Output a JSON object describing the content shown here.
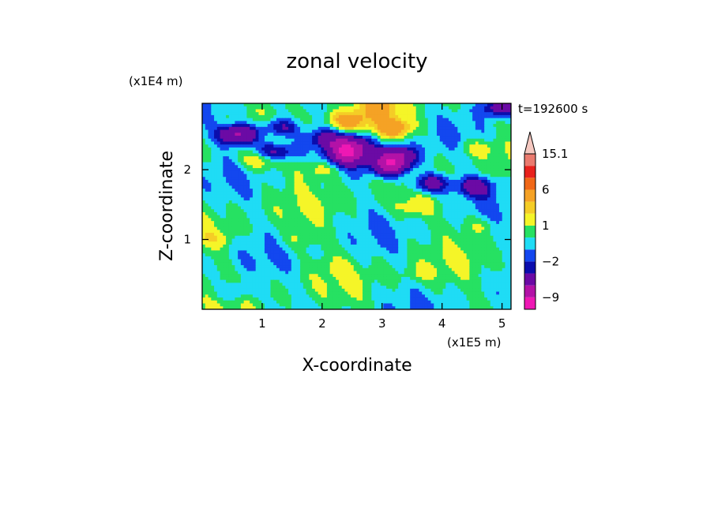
{
  "chart_data": {
    "type": "heatmap",
    "title": "zonal velocity",
    "xlabel": "X-coordinate",
    "ylabel": "Z-coordinate",
    "x_scale_label": "(x1E5 m)",
    "y_scale_label": "(x1E4 m)",
    "time_label": "t=192600 s",
    "xlim": [
      0,
      5.15
    ],
    "ylim": [
      0,
      2.95
    ],
    "x_ticks": [
      "1",
      "2",
      "3",
      "4",
      "5"
    ],
    "y_ticks": [
      "1",
      "2"
    ],
    "colorbar": {
      "labels": [
        "15.1",
        "6",
        "1",
        "-2",
        "-9"
      ],
      "levels": [
        -12,
        -9,
        -6,
        -3,
        -2,
        -1,
        0,
        1,
        2,
        3,
        6,
        9,
        12,
        15.1
      ],
      "colors": [
        "#ee18b4",
        "#b312a7",
        "#6b0aa5",
        "#0b0dad",
        "#1347ef",
        "#1fdcf5",
        "#26e162",
        "#f5f528",
        "#f5cd26",
        "#f5a225",
        "#f06717",
        "#e8211c",
        "#ea7a6e",
        "#f5c8c0"
      ],
      "extend": "max"
    },
    "features": [
      {
        "x": 0.6,
        "z": 2.5,
        "value": -7
      },
      {
        "x": 1.2,
        "z": 2.25,
        "value": -5
      },
      {
        "x": 1.3,
        "z": 2.6,
        "value": -4
      },
      {
        "x": 2.0,
        "z": 2.45,
        "value": -3
      },
      {
        "x": 2.45,
        "z": 2.35,
        "value": -6
      },
      {
        "x": 3.15,
        "z": 2.05,
        "value": -7
      },
      {
        "x": 3.25,
        "z": 2.2,
        "value": -6
      },
      {
        "x": 2.45,
        "z": 2.2,
        "value": -6
      },
      {
        "x": 3.8,
        "z": 1.8,
        "value": -5
      },
      {
        "x": 4.55,
        "z": 1.75,
        "value": -4
      },
      {
        "x": 4.95,
        "z": 2.9,
        "value": -5
      },
      {
        "x": 2.45,
        "z": 2.7,
        "value": 4
      },
      {
        "x": 3.2,
        "z": 2.6,
        "value": 4
      },
      {
        "x": 2.95,
        "z": 2.9,
        "value": 3
      },
      {
        "x": 1.0,
        "z": 2.15,
        "value": 3
      },
      {
        "x": 1.95,
        "z": 2.0,
        "value": 2
      },
      {
        "x": 4.6,
        "z": 2.3,
        "value": 2
      },
      {
        "x": 3.5,
        "z": 1.45,
        "value": 1.5
      },
      {
        "x": 4.6,
        "z": 1.2,
        "value": 1.5
      },
      {
        "x": 1.6,
        "z": 1.0,
        "value": 1
      },
      {
        "x": 0.25,
        "z": 1.0,
        "value": 1
      },
      {
        "x": 3.6,
        "z": 0.5,
        "value": 1
      },
      {
        "x": 2.2,
        "z": 0.6,
        "value": 0.5
      },
      {
        "x": 0.55,
        "z": 0.25,
        "value": -2
      }
    ]
  }
}
